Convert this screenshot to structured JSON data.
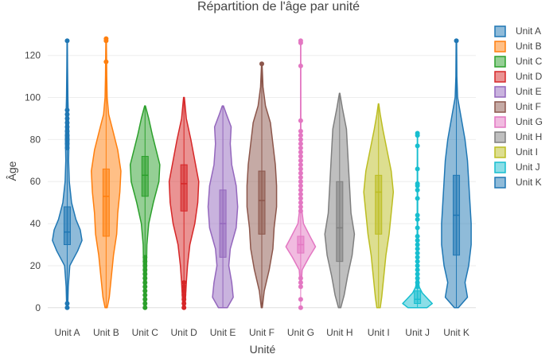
{
  "chart_data": {
    "type": "violin",
    "title": "Répartition de l'âge par unité",
    "xlabel": "Unité",
    "ylabel": "Âge",
    "ylim": [
      -5,
      132
    ],
    "yticks": [
      0,
      20,
      40,
      60,
      80,
      100,
      120
    ],
    "legend_position": "right",
    "grid": true,
    "categories": [
      "Unit A",
      "Unit B",
      "Unit C",
      "Unit D",
      "Unit E",
      "Unit F",
      "Unit G",
      "Unit H",
      "Unit I",
      "Unit J",
      "Unit K"
    ],
    "series": [
      {
        "name": "Unit A",
        "color": "#1f77b4",
        "min": 0,
        "max": 127,
        "q1": 30,
        "median": 36,
        "q3": 48,
        "density": [
          [
            0,
            0.03
          ],
          [
            10,
            0.06
          ],
          [
            20,
            0.15
          ],
          [
            27,
            0.6
          ],
          [
            32,
            0.85
          ],
          [
            37,
            0.75
          ],
          [
            42,
            0.5
          ],
          [
            50,
            0.25
          ],
          [
            60,
            0.12
          ],
          [
            70,
            0.08
          ],
          [
            80,
            0.1
          ],
          [
            90,
            0.07
          ],
          [
            100,
            0.04
          ],
          [
            115,
            0.02
          ],
          [
            127,
            0.01
          ]
        ],
        "outliers": [
          0,
          2,
          76,
          78,
          80,
          82,
          84,
          86,
          88,
          90,
          92,
          94,
          127
        ]
      },
      {
        "name": "Unit B",
        "color": "#ff7f0e",
        "min": 0,
        "max": 128,
        "q1": 34,
        "median": 53,
        "q3": 66,
        "density": [
          [
            0,
            0.05
          ],
          [
            5,
            0.15
          ],
          [
            15,
            0.25
          ],
          [
            25,
            0.35
          ],
          [
            35,
            0.5
          ],
          [
            45,
            0.55
          ],
          [
            55,
            0.65
          ],
          [
            65,
            0.7
          ],
          [
            75,
            0.55
          ],
          [
            85,
            0.3
          ],
          [
            92,
            0.12
          ],
          [
            100,
            0.05
          ],
          [
            110,
            0.03
          ],
          [
            120,
            0.02
          ],
          [
            128,
            0.01
          ]
        ],
        "outliers": [
          117,
          127,
          128
        ]
      },
      {
        "name": "Unit C",
        "color": "#2ca02c",
        "min": 0,
        "max": 96,
        "q1": 53,
        "median": 63,
        "q3": 72,
        "density": [
          [
            0,
            0.05
          ],
          [
            10,
            0.06
          ],
          [
            20,
            0.08
          ],
          [
            30,
            0.1
          ],
          [
            40,
            0.2
          ],
          [
            50,
            0.45
          ],
          [
            60,
            0.75
          ],
          [
            68,
            0.8
          ],
          [
            75,
            0.6
          ],
          [
            82,
            0.4
          ],
          [
            90,
            0.2
          ],
          [
            96,
            0.02
          ]
        ],
        "outliers": [
          0,
          2,
          4,
          6,
          8,
          10,
          12,
          14,
          16,
          18,
          20,
          22,
          24
        ]
      },
      {
        "name": "Unit D",
        "color": "#d62728",
        "min": 0,
        "max": 100,
        "q1": 46,
        "median": 59,
        "q3": 68,
        "density": [
          [
            0,
            0.05
          ],
          [
            5,
            0.08
          ],
          [
            12,
            0.12
          ],
          [
            20,
            0.18
          ],
          [
            30,
            0.3
          ],
          [
            40,
            0.55
          ],
          [
            50,
            0.7
          ],
          [
            60,
            0.75
          ],
          [
            70,
            0.55
          ],
          [
            80,
            0.35
          ],
          [
            90,
            0.12
          ],
          [
            100,
            0.02
          ]
        ],
        "outliers": [
          0,
          2,
          4,
          6,
          8,
          10,
          12
        ]
      },
      {
        "name": "Unit E",
        "color": "#9467bd",
        "min": 0,
        "max": 96,
        "q1": 24,
        "median": 40,
        "q3": 56,
        "density": [
          [
            0,
            0.15
          ],
          [
            5,
            0.35
          ],
          [
            12,
            0.3
          ],
          [
            20,
            0.2
          ],
          [
            28,
            0.25
          ],
          [
            38,
            0.45
          ],
          [
            48,
            0.5
          ],
          [
            58,
            0.45
          ],
          [
            68,
            0.3
          ],
          [
            78,
            0.25
          ],
          [
            86,
            0.28
          ],
          [
            92,
            0.12
          ],
          [
            96,
            0.02
          ]
        ],
        "outliers": []
      },
      {
        "name": "Unit F",
        "color": "#8c564b",
        "min": 0,
        "max": 116,
        "q1": 35,
        "median": 51,
        "q3": 65,
        "density": [
          [
            0,
            0.02
          ],
          [
            8,
            0.1
          ],
          [
            18,
            0.3
          ],
          [
            28,
            0.45
          ],
          [
            38,
            0.5
          ],
          [
            48,
            0.6
          ],
          [
            58,
            0.6
          ],
          [
            68,
            0.55
          ],
          [
            78,
            0.45
          ],
          [
            88,
            0.35
          ],
          [
            96,
            0.15
          ],
          [
            105,
            0.05
          ],
          [
            116,
            0.01
          ]
        ],
        "outliers": [
          116
        ]
      },
      {
        "name": "Unit G",
        "color": "#e377c2",
        "min": 0,
        "max": 127,
        "q1": 26,
        "median": 30,
        "q3": 34,
        "density": [
          [
            10,
            0.02
          ],
          [
            18,
            0.08
          ],
          [
            24,
            0.45
          ],
          [
            29,
            0.8
          ],
          [
            34,
            0.5
          ],
          [
            40,
            0.15
          ],
          [
            48,
            0.04
          ],
          [
            60,
            0.02
          ],
          [
            75,
            0.01
          ],
          [
            127,
            0.005
          ]
        ],
        "outliers": [
          0,
          4,
          10,
          12,
          14,
          46,
          48,
          50,
          52,
          54,
          56,
          58,
          60,
          62,
          64,
          66,
          68,
          70,
          72,
          74,
          76,
          78,
          80,
          82,
          84,
          89,
          115,
          126,
          127
        ]
      },
      {
        "name": "Unit H",
        "color": "#7f7f7f",
        "min": 0,
        "max": 102,
        "q1": 22,
        "median": 38,
        "q3": 60,
        "density": [
          [
            0,
            0.05
          ],
          [
            6,
            0.2
          ],
          [
            15,
            0.35
          ],
          [
            25,
            0.55
          ],
          [
            35,
            0.65
          ],
          [
            45,
            0.5
          ],
          [
            55,
            0.45
          ],
          [
            65,
            0.4
          ],
          [
            75,
            0.35
          ],
          [
            85,
            0.3
          ],
          [
            95,
            0.12
          ],
          [
            102,
            0.01
          ]
        ],
        "outliers": []
      },
      {
        "name": "Unit I",
        "color": "#bcbd22",
        "min": 0,
        "max": 97,
        "q1": 35,
        "median": 55,
        "q3": 63,
        "density": [
          [
            0,
            0.08
          ],
          [
            5,
            0.15
          ],
          [
            15,
            0.25
          ],
          [
            25,
            0.35
          ],
          [
            35,
            0.5
          ],
          [
            45,
            0.6
          ],
          [
            55,
            0.7
          ],
          [
            65,
            0.6
          ],
          [
            75,
            0.4
          ],
          [
            85,
            0.2
          ],
          [
            92,
            0.08
          ],
          [
            97,
            0.01
          ]
        ],
        "outliers": []
      },
      {
        "name": "Unit J",
        "color": "#17becf",
        "min": 0,
        "max": 83,
        "q1": 2,
        "median": 4,
        "q3": 8,
        "density": [
          [
            0,
            0.35
          ],
          [
            2,
            0.55
          ],
          [
            4,
            0.4
          ],
          [
            7,
            0.18
          ],
          [
            10,
            0.06
          ],
          [
            15,
            0.03
          ],
          [
            25,
            0.015
          ],
          [
            40,
            0.01
          ],
          [
            60,
            0.008
          ],
          [
            83,
            0.005
          ]
        ],
        "outliers": [
          10,
          12,
          14,
          16,
          18,
          20,
          22,
          24,
          26,
          28,
          30,
          32,
          34,
          38,
          42,
          44,
          52,
          56,
          58,
          59,
          66,
          77,
          82,
          83
        ]
      },
      {
        "name": "Unit K",
        "color": "#1f77b4",
        "min": 0,
        "max": 127,
        "q1": 25,
        "median": 44,
        "q3": 63,
        "density": [
          [
            0,
            0.08
          ],
          [
            5,
            0.45
          ],
          [
            12,
            0.35
          ],
          [
            20,
            0.5
          ],
          [
            30,
            0.6
          ],
          [
            40,
            0.6
          ],
          [
            50,
            0.55
          ],
          [
            60,
            0.5
          ],
          [
            70,
            0.45
          ],
          [
            80,
            0.35
          ],
          [
            90,
            0.2
          ],
          [
            100,
            0.05
          ],
          [
            110,
            0.02
          ],
          [
            127,
            0.01
          ]
        ],
        "outliers": [
          127
        ]
      }
    ]
  }
}
